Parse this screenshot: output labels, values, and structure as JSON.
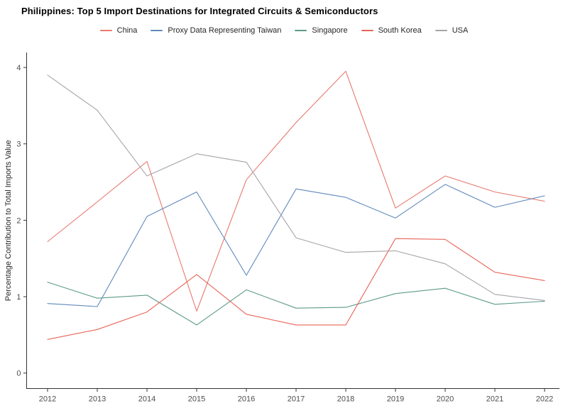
{
  "title": "Philippines: Top 5 Import Destinations for Integrated Circuits & Semiconductors",
  "axes": {
    "ylabel": "Percentage Contribution to Total Imports Value",
    "xlabel": ""
  },
  "chart_data": {
    "type": "line",
    "x": [
      2012,
      2013,
      2014,
      2015,
      2016,
      2017,
      2018,
      2019,
      2020,
      2021,
      2022
    ],
    "series": [
      {
        "name": "China",
        "color": "#E8796F",
        "values": [
          1.72,
          2.24,
          2.77,
          0.81,
          2.53,
          3.28,
          3.95,
          2.16,
          2.58,
          2.37,
          2.25
        ]
      },
      {
        "name": "Proxy Data Representing Taiwan",
        "color": "#6189BC",
        "values": [
          0.91,
          0.87,
          2.05,
          2.37,
          1.28,
          2.41,
          2.3,
          2.03,
          2.47,
          2.17,
          2.32
        ]
      },
      {
        "name": "Singapore",
        "color": "#5D9A89",
        "values": [
          1.19,
          0.98,
          1.02,
          0.63,
          1.09,
          0.85,
          0.86,
          1.04,
          1.11,
          0.9,
          0.94
        ]
      },
      {
        "name": "South Korea",
        "color": "#E86459",
        "values": [
          0.44,
          0.57,
          0.8,
          1.29,
          0.77,
          0.63,
          0.63,
          1.76,
          1.75,
          1.32,
          1.21
        ]
      },
      {
        "name": "USA",
        "color": "#A7A3A9",
        "values": [
          3.9,
          3.44,
          2.58,
          2.87,
          2.76,
          1.77,
          1.58,
          1.6,
          1.43,
          1.03,
          0.95
        ]
      }
    ],
    "title": "Philippines: Top 5 Import Destinations for Integrated Circuits & Semiconductors",
    "ylabel": "Percentage Contribution to Total Imports Value",
    "xlabel": "",
    "ylim": [
      0,
      4
    ],
    "yticks": [
      0,
      1,
      2,
      3,
      4
    ],
    "grid": false,
    "legend_position": "top"
  }
}
